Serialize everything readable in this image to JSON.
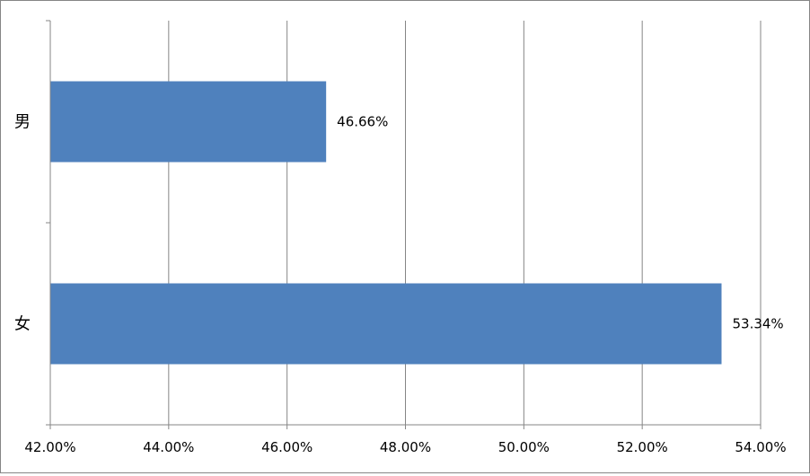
{
  "chart_data": {
    "type": "bar",
    "orientation": "horizontal",
    "categories": [
      "男",
      "女"
    ],
    "values": [
      46.66,
      53.34
    ],
    "data_labels": [
      "46.66%",
      "53.34%"
    ],
    "xlim": [
      42,
      54
    ],
    "x_ticks": [
      42,
      44,
      46,
      48,
      50,
      52,
      54
    ],
    "x_tick_labels": [
      "42.00%",
      "44.00%",
      "46.00%",
      "48.00%",
      "50.00%",
      "52.00%",
      "54.00%"
    ],
    "title": "",
    "xlabel": "",
    "ylabel": "",
    "grid": "vertical",
    "legend": "none",
    "bar_color": "#4F81BD",
    "grid_color": "#868686"
  }
}
